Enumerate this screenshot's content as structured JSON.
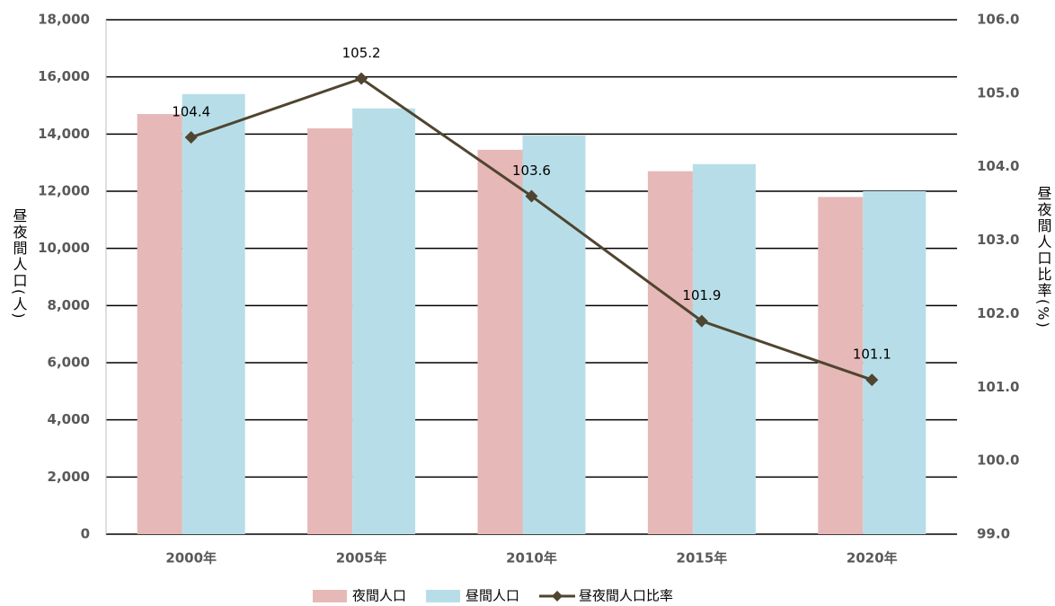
{
  "chart_data": {
    "type": "bar-line",
    "categories": [
      "2000年",
      "2005年",
      "2010年",
      "2015年",
      "2020年"
    ],
    "y_label": "昼夜間人口(人)",
    "y2_label": "昼夜間人口比率(%)",
    "series": [
      {
        "name": "夜間人口",
        "type": "bar",
        "color": "#e6b8b7",
        "values": [
          14700,
          14200,
          13450,
          12700,
          11800
        ]
      },
      {
        "name": "昼間人口",
        "type": "bar",
        "color": "#b7dee8",
        "values": [
          15400,
          14900,
          13950,
          12950,
          12000
        ]
      },
      {
        "name": "昼夜間人口比率",
        "type": "line",
        "axis": "y2",
        "color": "#4f4530",
        "values": [
          104.4,
          105.2,
          103.6,
          101.9,
          101.1
        ]
      }
    ],
    "ylim": [
      0,
      18000
    ],
    "yticks": [
      0,
      {
        "value": 2000,
        "label": "2,000"
      },
      {
        "value": 4000,
        "label": "4,000"
      },
      {
        "value": 6000,
        "label": "6,000"
      },
      {
        "value": 8000,
        "label": "8,000"
      },
      {
        "value": 10000,
        "label": "10,000"
      },
      {
        "value": 12000,
        "label": "12,000"
      },
      {
        "value": 14000,
        "label": "14,000"
      },
      {
        "value": 16000,
        "label": "16,000"
      },
      {
        "value": 18000,
        "label": "18,000"
      }
    ],
    "y2lim": [
      99,
      106
    ],
    "y2ticks": [
      {
        "value": 99,
        "label": "99.0"
      },
      {
        "value": 100,
        "label": "100.0"
      },
      {
        "value": 101,
        "label": "101.0"
      },
      {
        "value": 102,
        "label": "102.0"
      },
      {
        "value": 103,
        "label": "103.0"
      },
      {
        "value": 104,
        "label": "104.0"
      },
      {
        "value": 105,
        "label": "105.0"
      },
      {
        "value": 106,
        "label": "106.0"
      }
    ],
    "grid": true,
    "legend": "bottom"
  }
}
